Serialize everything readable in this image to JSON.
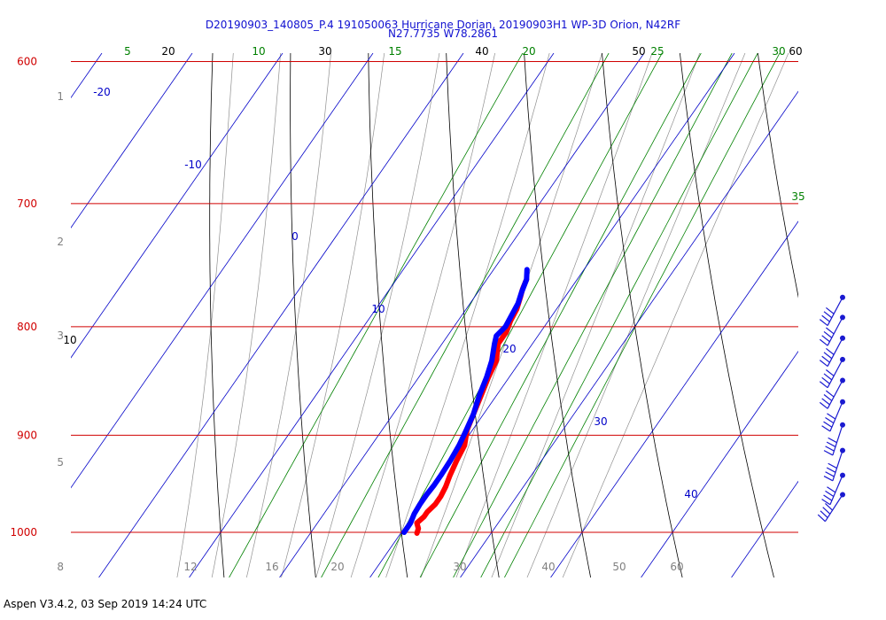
{
  "title": "D20190903_140805_P.4 191050063 Hurricane Dorian, 20190903H1 WP-3D Orion, N42RF",
  "subtitle": "N27.7735 W78.2861",
  "footer": "Aspen V3.4.2, 03 Sep 2019  14:24 UTC",
  "colors": {
    "isobar": "#d00000",
    "isotherm": "#0000c8",
    "dry_adiabat": "#000000",
    "mixing_ratio": "#008000",
    "moist_adiabat": "#909090",
    "temperature": "#ff0000",
    "dewpoint": "#0000ff",
    "barb": "#1a1ad0"
  },
  "chart_data": {
    "type": "skew-t log-p",
    "pressure_levels_hpa": [
      "600",
      "700",
      "800",
      "900",
      "1000"
    ],
    "pressure_range_hpa": [
      600,
      1030
    ],
    "height_km_labels": [
      "1",
      "2",
      "3",
      "5",
      "8"
    ],
    "bottom_temperature_ticks": [
      "12",
      "16",
      "20",
      "30",
      "40",
      "50",
      "60"
    ],
    "isotherm_labels": [
      "-20",
      "-10",
      "0",
      "10",
      "20",
      "30",
      "40"
    ],
    "dry_adiabat_labels": [
      "10",
      "20",
      "30",
      "40",
      "50",
      "60"
    ],
    "mixing_ratio_labels": [
      "5",
      "10",
      "15",
      "20",
      "25",
      "30",
      "35"
    ],
    "temperature_profile": [
      {
        "p": 1001,
        "t": 21.8
      },
      {
        "p": 996,
        "t": 21.6
      },
      {
        "p": 990,
        "t": 21.0
      },
      {
        "p": 983,
        "t": 21.3
      },
      {
        "p": 978,
        "t": 21.3
      },
      {
        "p": 970,
        "t": 21.6
      },
      {
        "p": 962,
        "t": 21.6
      },
      {
        "p": 952,
        "t": 21.4
      },
      {
        "p": 940,
        "t": 21.0
      },
      {
        "p": 925,
        "t": 20.6
      },
      {
        "p": 910,
        "t": 20.3
      },
      {
        "p": 895,
        "t": 19.4
      },
      {
        "p": 880,
        "t": 18.9
      },
      {
        "p": 862,
        "t": 18.3
      },
      {
        "p": 845,
        "t": 17.7
      },
      {
        "p": 830,
        "t": 17.3
      },
      {
        "p": 815,
        "t": 16.2
      },
      {
        "p": 805,
        "t": 16.2
      },
      {
        "p": 795,
        "t": 15.8
      },
      {
        "p": 785,
        "t": 15.6
      },
      {
        "p": 775,
        "t": 15.1
      },
      {
        "p": 768,
        "t": 14.7
      },
      {
        "p": 760,
        "t": 14.4
      }
    ],
    "dewpoint_profile": [
      {
        "p": 1000,
        "t": 20.3
      },
      {
        "p": 990,
        "t": 20.3
      },
      {
        "p": 980,
        "t": 20.0
      },
      {
        "p": 970,
        "t": 19.9
      },
      {
        "p": 960,
        "t": 19.9
      },
      {
        "p": 950,
        "t": 20.0
      },
      {
        "p": 940,
        "t": 20.0
      },
      {
        "p": 925,
        "t": 19.9
      },
      {
        "p": 910,
        "t": 19.7
      },
      {
        "p": 898,
        "t": 19.4
      },
      {
        "p": 880,
        "t": 18.9
      },
      {
        "p": 862,
        "t": 18.1
      },
      {
        "p": 845,
        "t": 17.5
      },
      {
        "p": 830,
        "t": 16.8
      },
      {
        "p": 815,
        "t": 15.8
      },
      {
        "p": 808,
        "t": 15.4
      },
      {
        "p": 800,
        "t": 15.7
      },
      {
        "p": 790,
        "t": 15.5
      },
      {
        "p": 780,
        "t": 15.3
      },
      {
        "p": 770,
        "t": 14.8
      },
      {
        "p": 760,
        "t": 14.4
      },
      {
        "p": 752,
        "t": 13.7
      }
    ],
    "wind_barbs": [
      {
        "p": 775,
        "dir": 100,
        "speed_kt": 40
      },
      {
        "p": 792,
        "dir": 100,
        "speed_kt": 40
      },
      {
        "p": 810,
        "dir": 100,
        "speed_kt": 40
      },
      {
        "p": 829,
        "dir": 100,
        "speed_kt": 40
      },
      {
        "p": 848,
        "dir": 100,
        "speed_kt": 40
      },
      {
        "p": 868,
        "dir": 95,
        "speed_kt": 40
      },
      {
        "p": 890,
        "dir": 90,
        "speed_kt": 40
      },
      {
        "p": 915,
        "dir": 90,
        "speed_kt": 40
      },
      {
        "p": 940,
        "dir": 95,
        "speed_kt": 40
      },
      {
        "p": 960,
        "dir": 105,
        "speed_kt": 40
      }
    ]
  }
}
